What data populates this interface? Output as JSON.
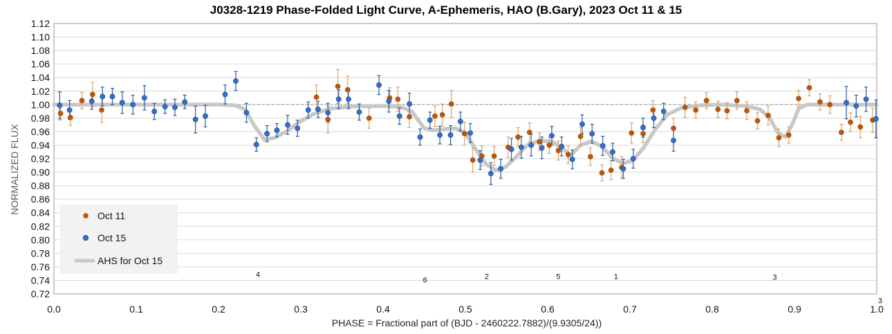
{
  "chart_data": {
    "type": "scatter",
    "title": "J0328-1219 Phase-Folded Light Curve, A-Ephemeris, HAO (B.Gary), 2023 Oct 11 & 15",
    "xlabel": "PHASE = Fractional part of (BJD - 2460222.7882)/(9.9305/24))",
    "ylabel": "NORMALIZED FLUX",
    "xlim": [
      0.0,
      1.0
    ],
    "ylim": [
      0.72,
      1.12
    ],
    "x_ticks": [
      "0.0",
      "0.1",
      "0.2",
      "0.3",
      "0.4",
      "0.5",
      "0.6",
      "0.7",
      "0.8",
      "0.9",
      "1.0"
    ],
    "y_ticks": [
      "0.72",
      "0.74",
      "0.76",
      "0.78",
      "0.80",
      "0.82",
      "0.84",
      "0.86",
      "0.88",
      "0.90",
      "0.92",
      "0.94",
      "0.96",
      "0.98",
      "1.00",
      "1.02",
      "1.04",
      "1.06",
      "1.08",
      "1.10",
      "1.12"
    ],
    "grid": "horizontal",
    "reference_line": 1.0,
    "legend_position": "bottom-left",
    "colors": {
      "oct11": "#b5570f",
      "oct15": "#2f6fd0",
      "model": "#c8c8c8",
      "oct11_err": "#d9a36a",
      "oct15_err": "#2e5a9e"
    },
    "series": [
      {
        "name": "Oct 11",
        "marker": "point",
        "points": [
          [
            0.008,
            0.987,
            0.01
          ],
          [
            0.02,
            0.981,
            0.012
          ],
          [
            0.034,
            1.006,
            0.012
          ],
          [
            0.047,
            1.015,
            0.018
          ],
          [
            0.058,
            0.992,
            0.018
          ],
          [
            0.319,
            1.011,
            0.018
          ],
          [
            0.333,
            0.978,
            0.02
          ],
          [
            0.345,
            1.027,
            0.025
          ],
          [
            0.357,
            1.022,
            0.02
          ],
          [
            0.383,
            0.98,
            0.015
          ],
          [
            0.408,
            1.01,
            0.015
          ],
          [
            0.418,
            1.008,
            0.018
          ],
          [
            0.432,
            0.982,
            0.016
          ],
          [
            0.463,
            0.983,
            0.015
          ],
          [
            0.472,
            0.985,
            0.016
          ],
          [
            0.483,
            1.001,
            0.02
          ],
          [
            0.499,
            0.957,
            0.017
          ],
          [
            0.509,
            0.918,
            0.018
          ],
          [
            0.52,
            0.924,
            0.015
          ],
          [
            0.535,
            0.924,
            0.014
          ],
          [
            0.552,
            0.937,
            0.015
          ],
          [
            0.564,
            0.952,
            0.014
          ],
          [
            0.578,
            0.959,
            0.014
          ],
          [
            0.59,
            0.945,
            0.013
          ],
          [
            0.602,
            0.94,
            0.012
          ],
          [
            0.613,
            0.932,
            0.014
          ],
          [
            0.625,
            0.926,
            0.013
          ],
          [
            0.64,
            0.953,
            0.013
          ],
          [
            0.652,
            0.923,
            0.013
          ],
          [
            0.666,
            0.899,
            0.012
          ],
          [
            0.677,
            0.903,
            0.014
          ],
          [
            0.69,
            0.907,
            0.016
          ],
          [
            0.702,
            0.958,
            0.015
          ],
          [
            0.716,
            0.957,
            0.013
          ],
          [
            0.728,
            0.992,
            0.014
          ],
          [
            0.753,
            0.965,
            0.015
          ],
          [
            0.767,
            0.996,
            0.015
          ],
          [
            0.78,
            0.992,
            0.012
          ],
          [
            0.793,
            1.006,
            0.012
          ],
          [
            0.807,
            0.993,
            0.012
          ],
          [
            0.818,
            0.991,
            0.012
          ],
          [
            0.83,
            1.006,
            0.013
          ],
          [
            0.842,
            0.991,
            0.013
          ],
          [
            0.855,
            0.976,
            0.012
          ],
          [
            0.868,
            0.984,
            0.014
          ],
          [
            0.881,
            0.951,
            0.013
          ],
          [
            0.893,
            0.955,
            0.012
          ],
          [
            0.905,
            1.009,
            0.012
          ],
          [
            0.918,
            1.025,
            0.012
          ],
          [
            0.931,
            1.004,
            0.012
          ],
          [
            0.943,
            1.0,
            0.013
          ],
          [
            0.957,
            0.959,
            0.012
          ],
          [
            0.968,
            0.974,
            0.014
          ],
          [
            0.98,
            0.967,
            0.016
          ],
          [
            0.995,
            0.977,
            0.018
          ]
        ]
      },
      {
        "name": "Oct 15",
        "marker": "point",
        "points": [
          [
            0.007,
            0.999,
            0.02
          ],
          [
            0.019,
            0.992,
            0.014
          ],
          [
            0.046,
            1.005,
            0.012
          ],
          [
            0.059,
            1.012,
            0.014
          ],
          [
            0.071,
            1.012,
            0.012
          ],
          [
            0.083,
            1.003,
            0.016
          ],
          [
            0.096,
            1.0,
            0.014
          ],
          [
            0.11,
            1.01,
            0.018
          ],
          [
            0.122,
            0.99,
            0.012
          ],
          [
            0.135,
            0.997,
            0.01
          ],
          [
            0.147,
            0.996,
            0.012
          ],
          [
            0.159,
            1.004,
            0.01
          ],
          [
            0.172,
            0.978,
            0.02
          ],
          [
            0.184,
            0.983,
            0.016
          ],
          [
            0.208,
            1.015,
            0.014
          ],
          [
            0.221,
            1.035,
            0.014
          ],
          [
            0.234,
            0.988,
            0.014
          ],
          [
            0.246,
            0.941,
            0.01
          ],
          [
            0.259,
            0.957,
            0.012
          ],
          [
            0.271,
            0.962,
            0.01
          ],
          [
            0.284,
            0.97,
            0.014
          ],
          [
            0.296,
            0.965,
            0.012
          ],
          [
            0.309,
            0.992,
            0.012
          ],
          [
            0.321,
            0.993,
            0.012
          ],
          [
            0.333,
            0.988,
            0.014
          ],
          [
            0.346,
            1.008,
            0.014
          ],
          [
            0.358,
            1.008,
            0.014
          ],
          [
            0.371,
            0.989,
            0.012
          ],
          [
            0.395,
            1.029,
            0.014
          ],
          [
            0.407,
            1.005,
            0.016
          ],
          [
            0.42,
            0.983,
            0.012
          ],
          [
            0.432,
            1.001,
            0.016
          ],
          [
            0.445,
            0.952,
            0.012
          ],
          [
            0.457,
            0.977,
            0.012
          ],
          [
            0.469,
            0.955,
            0.013
          ],
          [
            0.482,
            0.955,
            0.014
          ],
          [
            0.494,
            0.975,
            0.014
          ],
          [
            0.506,
            0.958,
            0.014
          ],
          [
            0.518,
            0.918,
            0.014
          ],
          [
            0.531,
            0.898,
            0.016
          ],
          [
            0.543,
            0.905,
            0.014
          ],
          [
            0.556,
            0.934,
            0.016
          ],
          [
            0.568,
            0.937,
            0.016
          ],
          [
            0.58,
            0.94,
            0.016
          ],
          [
            0.593,
            0.936,
            0.016
          ],
          [
            0.605,
            0.954,
            0.014
          ],
          [
            0.617,
            0.938,
            0.014
          ],
          [
            0.63,
            0.919,
            0.014
          ],
          [
            0.642,
            0.971,
            0.014
          ],
          [
            0.654,
            0.957,
            0.014
          ],
          [
            0.667,
            0.939,
            0.014
          ],
          [
            0.679,
            0.93,
            0.013
          ],
          [
            0.692,
            0.905,
            0.014
          ],
          [
            0.704,
            0.92,
            0.014
          ],
          [
            0.716,
            0.966,
            0.014
          ],
          [
            0.729,
            0.98,
            0.014
          ],
          [
            0.741,
            0.99,
            0.012
          ],
          [
            0.753,
            0.947,
            0.016
          ],
          [
            0.963,
            1.003,
            0.024
          ],
          [
            0.975,
            0.998,
            0.016
          ],
          [
            0.987,
            1.008,
            0.018
          ],
          [
            0.999,
            0.979,
            0.028
          ]
        ]
      },
      {
        "name": "AHS for Oct 15",
        "marker": "line",
        "points": [
          [
            0.0,
            1.0
          ],
          [
            0.2,
            1.0
          ],
          [
            0.22,
            0.999
          ],
          [
            0.232,
            0.993
          ],
          [
            0.244,
            0.968
          ],
          [
            0.256,
            0.948
          ],
          [
            0.268,
            0.951
          ],
          [
            0.282,
            0.96
          ],
          [
            0.298,
            0.974
          ],
          [
            0.315,
            0.986
          ],
          [
            0.335,
            0.994
          ],
          [
            0.36,
            0.997
          ],
          [
            0.4,
            0.998
          ],
          [
            0.42,
            0.997
          ],
          [
            0.435,
            0.99
          ],
          [
            0.45,
            0.965
          ],
          [
            0.462,
            0.962
          ],
          [
            0.475,
            0.964
          ],
          [
            0.488,
            0.965
          ],
          [
            0.5,
            0.958
          ],
          [
            0.512,
            0.935
          ],
          [
            0.525,
            0.912
          ],
          [
            0.537,
            0.903
          ],
          [
            0.549,
            0.908
          ],
          [
            0.562,
            0.923
          ],
          [
            0.575,
            0.94
          ],
          [
            0.59,
            0.947
          ],
          [
            0.606,
            0.945
          ],
          [
            0.618,
            0.935
          ],
          [
            0.628,
            0.925
          ],
          [
            0.64,
            0.94
          ],
          [
            0.653,
            0.946
          ],
          [
            0.666,
            0.938
          ],
          [
            0.678,
            0.922
          ],
          [
            0.691,
            0.913
          ],
          [
            0.703,
            0.917
          ],
          [
            0.716,
            0.935
          ],
          [
            0.73,
            0.962
          ],
          [
            0.745,
            0.985
          ],
          [
            0.762,
            0.995
          ],
          [
            0.785,
            0.999
          ],
          [
            0.81,
            1.0
          ],
          [
            0.84,
            0.998
          ],
          [
            0.858,
            0.993
          ],
          [
            0.87,
            0.98
          ],
          [
            0.88,
            0.958
          ],
          [
            0.889,
            0.952
          ],
          [
            0.897,
            0.97
          ],
          [
            0.905,
            0.994
          ],
          [
            0.915,
            1.0
          ],
          [
            1.0,
            1.0
          ]
        ]
      }
    ],
    "annotations": [
      {
        "text": "4",
        "x": 0.248,
        "y": 0.745
      },
      {
        "text": "6",
        "x": 0.451,
        "y": 0.737
      },
      {
        "text": "2",
        "x": 0.526,
        "y": 0.742
      },
      {
        "text": "5",
        "x": 0.613,
        "y": 0.742
      },
      {
        "text": "1",
        "x": 0.683,
        "y": 0.742
      },
      {
        "text": "3",
        "x": 0.876,
        "y": 0.741
      },
      {
        "text": "3",
        "x": 1.004,
        "y": 0.706
      }
    ],
    "legend": [
      "Oct 11",
      "Oct 15",
      "AHS for Oct 15"
    ]
  }
}
